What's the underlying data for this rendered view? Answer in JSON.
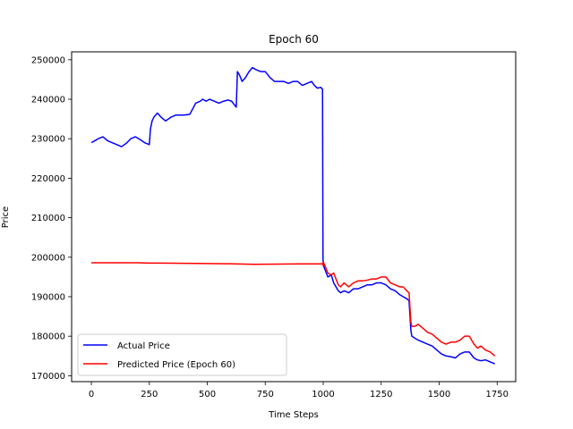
{
  "chart_data": {
    "type": "line",
    "title": "Epoch 60",
    "xlabel": "Time Steps",
    "ylabel": "Price",
    "xlim": [
      -85,
      1830
    ],
    "ylim": [
      168500,
      252000
    ],
    "xticks": [
      0,
      250,
      500,
      750,
      1000,
      1250,
      1500,
      1750
    ],
    "yticks": [
      170000,
      180000,
      190000,
      200000,
      210000,
      220000,
      230000,
      240000,
      250000
    ],
    "grid": false,
    "legend_position": "lower-left",
    "series": [
      {
        "name": "Actual Price",
        "color": "#0000ff",
        "x": [
          0,
          15,
          30,
          50,
          70,
          90,
          110,
          130,
          150,
          170,
          190,
          210,
          230,
          250,
          255,
          262,
          270,
          285,
          300,
          320,
          345,
          365,
          380,
          400,
          425,
          450,
          470,
          480,
          495,
          510,
          530,
          550,
          570,
          590,
          605,
          618,
          625,
          630,
          640,
          650,
          665,
          680,
          695,
          710,
          730,
          750,
          770,
          790,
          810,
          830,
          850,
          870,
          890,
          910,
          930,
          950,
          962,
          975,
          990,
          997,
          999,
          1000,
          1010,
          1020,
          1035,
          1045,
          1055,
          1065,
          1075,
          1090,
          1110,
          1130,
          1150,
          1170,
          1190,
          1210,
          1230,
          1250,
          1270,
          1290,
          1310,
          1330,
          1345,
          1360,
          1370,
          1378,
          1382,
          1395,
          1410,
          1430,
          1450,
          1470,
          1490,
          1510,
          1530,
          1550,
          1570,
          1590,
          1610,
          1630,
          1650,
          1665,
          1680,
          1700,
          1720,
          1740
        ],
        "y": [
          229000,
          229500,
          230000,
          230500,
          229500,
          229000,
          228500,
          228000,
          228800,
          230000,
          230500,
          229800,
          229000,
          228500,
          232500,
          234500,
          235500,
          236500,
          235500,
          234500,
          235500,
          236000,
          236000,
          236000,
          236200,
          239000,
          239500,
          240000,
          239500,
          240000,
          239500,
          239000,
          239500,
          239800,
          239500,
          238500,
          238000,
          247000,
          246000,
          244500,
          245500,
          247000,
          248000,
          247500,
          247000,
          247000,
          245500,
          244500,
          244500,
          244500,
          244000,
          244500,
          244500,
          243500,
          244000,
          244500,
          243500,
          242800,
          243000,
          242500,
          200000,
          198000,
          196500,
          195000,
          195500,
          193500,
          192500,
          191500,
          191000,
          191500,
          191000,
          192000,
          192000,
          192500,
          193000,
          193000,
          193500,
          193500,
          193000,
          192000,
          191500,
          190500,
          190000,
          189500,
          189000,
          181500,
          180000,
          179500,
          179000,
          178500,
          178000,
          177500,
          176500,
          175500,
          175000,
          174800,
          174500,
          175500,
          176000,
          176000,
          174500,
          174000,
          173800,
          174000,
          173500,
          173000
        ]
      },
      {
        "name": "Predicted Price (Epoch 60)",
        "color": "#ff0000",
        "x": [
          0,
          100,
          200,
          250,
          300,
          400,
          500,
          600,
          700,
          800,
          900,
          997,
          999,
          1000,
          1010,
          1020,
          1035,
          1045,
          1055,
          1065,
          1075,
          1090,
          1110,
          1130,
          1150,
          1170,
          1190,
          1210,
          1230,
          1250,
          1270,
          1290,
          1310,
          1330,
          1345,
          1360,
          1370,
          1378,
          1382,
          1395,
          1410,
          1430,
          1450,
          1470,
          1490,
          1510,
          1530,
          1550,
          1570,
          1590,
          1610,
          1630,
          1650,
          1665,
          1680,
          1700,
          1720,
          1740
        ],
        "y": [
          198600,
          198600,
          198600,
          198500,
          198500,
          198450,
          198400,
          198350,
          198200,
          198250,
          198300,
          198300,
          198000,
          198800,
          197500,
          196000,
          195500,
          196000,
          194500,
          193000,
          192500,
          193500,
          192500,
          193500,
          194000,
          194000,
          194200,
          194500,
          194500,
          195000,
          195000,
          193500,
          193000,
          192500,
          192500,
          191500,
          191000,
          183500,
          182500,
          182500,
          183000,
          182000,
          181000,
          180500,
          179500,
          178500,
          178000,
          178500,
          178500,
          179000,
          180000,
          180000,
          178000,
          177000,
          177500,
          176500,
          176000,
          175000
        ]
      }
    ]
  }
}
